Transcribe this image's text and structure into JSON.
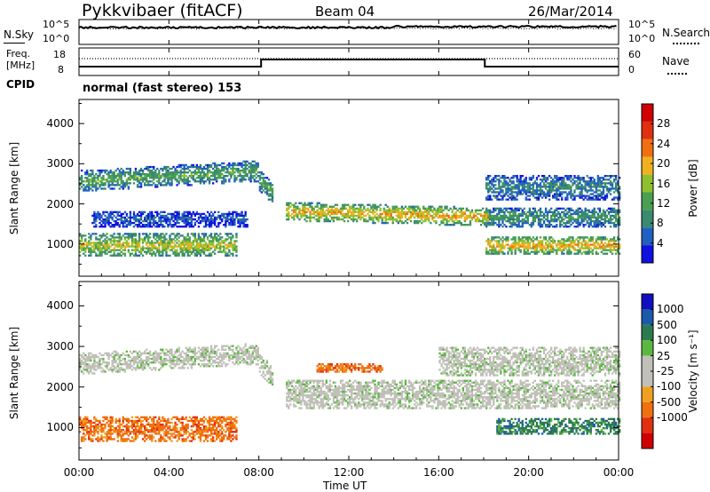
{
  "header": {
    "station": "Pykkvibaer (fitACF)",
    "beam": "Beam 04",
    "date": "26/Mar/2014"
  },
  "noise_panel": {
    "left_label": "N.Sky",
    "left_ticks": [
      "10^5",
      "10^0"
    ],
    "right_ticks": [
      "10^5",
      "10^0"
    ],
    "right_label": "N.Search"
  },
  "freq_panel": {
    "left_label_1": "Freq.",
    "left_label_2": "[MHz]",
    "left_ticks": [
      "18",
      "8"
    ],
    "right_ticks": [
      "60",
      "0"
    ],
    "right_label": "Nave"
  },
  "cpid": {
    "label": "CPID",
    "mode": "normal (fast stereo) 153"
  },
  "colors": {
    "power_scale": [
      "#1010e0",
      "#2060c0",
      "#3a8a70",
      "#4aa050",
      "#90c030",
      "#f0b020",
      "#f07010",
      "#e03010",
      "#d00000"
    ],
    "velocity_scale": [
      "#1010c0",
      "#1a5aa8",
      "#2e7a50",
      "#5ab840",
      "#c0c0b8",
      "#c0c0b8",
      "#f0a020",
      "#f07010",
      "#e03010",
      "#d00000"
    ]
  },
  "chart_data": [
    {
      "type": "heatmap",
      "title": "",
      "xlabel": "Time UT",
      "ylabel": "Slant Range [km]",
      "x_ticks": [
        "00:00",
        "04:00",
        "08:00",
        "12:00",
        "16:00",
        "20:00",
        "00:00"
      ],
      "x_range_hours": [
        0,
        24
      ],
      "y_ticks": [
        1000,
        2000,
        3000,
        4000
      ],
      "ylim": [
        200,
        4600
      ],
      "colorbar_label": "Power [dB]",
      "colorbar_ticks": [
        4,
        8,
        12,
        16,
        20,
        24,
        28
      ],
      "colorbar_range": [
        0,
        32
      ]
    },
    {
      "type": "heatmap",
      "title": "",
      "xlabel": "Time UT",
      "ylabel": "Slant Range [km]",
      "x_ticks": [
        "00:00",
        "04:00",
        "08:00",
        "12:00",
        "16:00",
        "20:00",
        "00:00"
      ],
      "x_range_hours": [
        0,
        24
      ],
      "y_ticks": [
        1000,
        2000,
        3000,
        4000
      ],
      "ylim": [
        200,
        4600
      ],
      "colorbar_label": "Velocity [m s⁻¹]",
      "colorbar_ticks": [
        "1000",
        "500",
        "100",
        "25",
        "-25",
        "-100",
        "-500",
        "-1000"
      ]
    }
  ]
}
